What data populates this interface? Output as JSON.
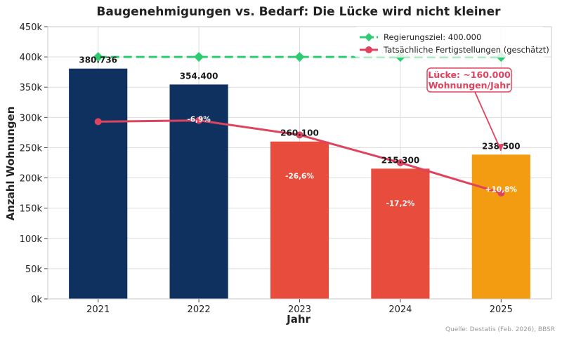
{
  "chart_data": {
    "type": "bar",
    "title": "Baugenehmigungen vs. Bedarf: Die Lücke wird nicht kleiner",
    "xlabel": "Jahr",
    "ylabel": "Anzahl Wohnungen",
    "categories": [
      "2021",
      "2022",
      "2023",
      "2024",
      "2025"
    ],
    "ylim": [
      0,
      450000
    ],
    "yticks": [
      0,
      50000,
      100000,
      150000,
      200000,
      250000,
      300000,
      350000,
      400000,
      450000
    ],
    "ytick_labels": [
      "0k",
      "50k",
      "100k",
      "150k",
      "200k",
      "250k",
      "300k",
      "350k",
      "400k",
      "450k"
    ],
    "grid": true,
    "legend_position": "top-right",
    "bars": {
      "values": [
        380736,
        354400,
        260100,
        215300,
        238500
      ],
      "value_labels": [
        "380.736",
        "354.400",
        "260.100",
        "215.300",
        "238.500"
      ],
      "change_labels": [
        "",
        "-6,9%",
        "-26,6%",
        "-17,2%",
        "+10,8%"
      ],
      "colors": [
        "#0f3160",
        "#0f3160",
        "#e74c3c",
        "#e74c3c",
        "#f39c12"
      ]
    },
    "series": [
      {
        "name": "Regierungsziel: 400.000",
        "type": "line",
        "style": "dashed",
        "marker": "diamond",
        "color": "#2ecc71",
        "values": [
          400000,
          400000,
          400000,
          400000,
          400000
        ]
      },
      {
        "name": "Tatsächliche Fertigstellungen (geschätzt)",
        "type": "line",
        "style": "solid",
        "marker": "circle",
        "color": "#e0435f",
        "values": [
          293000,
          295000,
          271000,
          225000,
          175000
        ]
      }
    ],
    "annotation": {
      "lines": [
        "Lücke: ~160.000",
        "Wohnungen/Jahr"
      ],
      "category": "2025",
      "points_to_value": 245000,
      "color": "#e0435f"
    },
    "source": "Quelle: Destatis (Feb. 2026), BBSR"
  }
}
